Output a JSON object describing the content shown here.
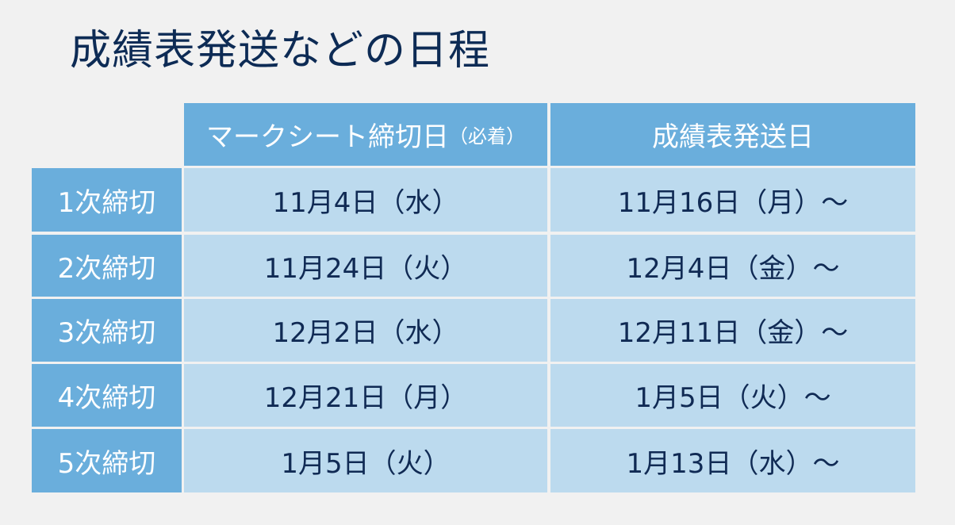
{
  "title": "成績表発送などの日程",
  "table": {
    "headers": {
      "sheet_main": "マークシート締切日",
      "sheet_note": "（必着）",
      "ship": "成績表発送日"
    },
    "rows": [
      {
        "label": "1次締切",
        "deadline": "11月4日（水）",
        "ship": "11月16日（月）～"
      },
      {
        "label": "2次締切",
        "deadline": "11月24日（火）",
        "ship": "12月4日（金）～"
      },
      {
        "label": "3次締切",
        "deadline": "12月2日（水）",
        "ship": "12月11日（金）～"
      },
      {
        "label": "4次締切",
        "deadline": "12月21日（月）",
        "ship": "1月5日（火）～"
      },
      {
        "label": "5次締切",
        "deadline": "1月5日（火）",
        "ship": "1月13日（水）～"
      }
    ]
  }
}
